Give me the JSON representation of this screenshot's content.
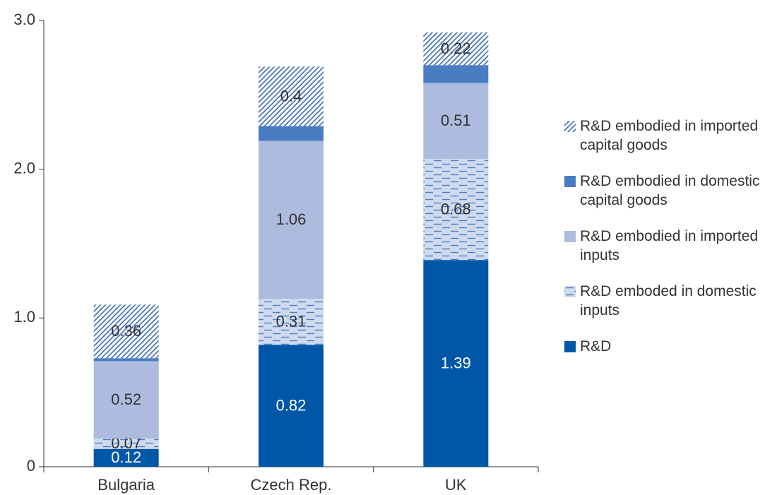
{
  "chart_data": {
    "type": "stacked_bar",
    "categories": [
      "Bulgaria",
      "Czech Rep.",
      "UK"
    ],
    "series": [
      {
        "name": "R&D",
        "color": "#0057a8",
        "label_color": "#ffffff",
        "values": [
          0.12,
          0.82,
          1.39
        ]
      },
      {
        "name": "R&D emboded in domestic inputs",
        "color": "#cfdaee",
        "pattern": "dashes",
        "pattern_color": "#4d7fc4",
        "values": [
          0.07,
          0.31,
          0.68
        ]
      },
      {
        "name": "R&D embodied in imported inputs",
        "color": "#adbbdf",
        "values": [
          0.52,
          1.06,
          0.51
        ]
      },
      {
        "name": "R&D embodied in domestic capital goods",
        "color": "#4a7cc1",
        "data_labels": false,
        "values": [
          0.02,
          0.1,
          0.12
        ]
      },
      {
        "name": "R&D embodied in imported capital goods",
        "color": "#ffffff",
        "pattern": "diagonal",
        "pattern_color": "#3a6cb8",
        "values": [
          0.36,
          0.4,
          0.22
        ]
      }
    ],
    "ylim": [
      0,
      3
    ],
    "yticks": [
      0,
      {
        "value": 1,
        "label": "1.0"
      },
      {
        "value": 2,
        "label": "2.0"
      },
      {
        "value": 3,
        "label": "3.0"
      }
    ],
    "legend": "right"
  }
}
